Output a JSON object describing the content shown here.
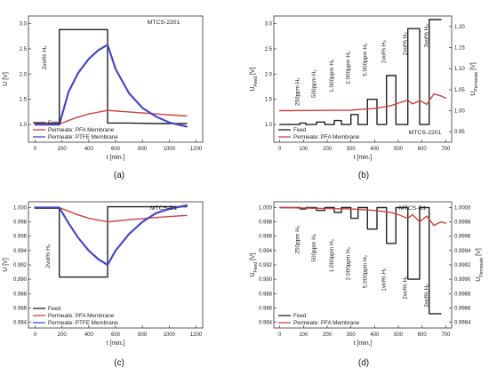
{
  "chart_data": [
    {
      "type": "line",
      "panel_label": "(a)",
      "annotation": "MTCS-2201",
      "inline_labels": [
        "2vol% H₂"
      ],
      "xlabel": "t [min.]",
      "ylabel": "U [V]",
      "ylabel_right": "",
      "xlim": [
        -50,
        1250
      ],
      "ylim": [
        0.65,
        3.15
      ],
      "xticks": [
        "0",
        "200",
        "400",
        "600",
        "800",
        "1000",
        "1200"
      ],
      "yticks": [
        "1.0",
        "1.5",
        "2.0",
        "2.5",
        "3.0"
      ],
      "legend_position": "bottom-left",
      "series": [
        {
          "name": "Feed",
          "color": "#222222",
          "x": [
            0,
            180,
            180,
            540,
            540,
            700,
            900,
            1130
          ],
          "y": [
            1.03,
            1.03,
            2.88,
            2.88,
            1.03,
            1.03,
            1.02,
            1.02
          ]
        },
        {
          "name": "Permeate: PFA Membrane",
          "color": "#d04040",
          "x": [
            0,
            180,
            300,
            400,
            540,
            700,
            900,
            1130
          ],
          "y": [
            1.03,
            1.01,
            1.13,
            1.21,
            1.28,
            1.25,
            1.21,
            1.17
          ]
        },
        {
          "name": "Permeate: PTFE Membrane",
          "color": "#4848c8",
          "x": [
            0,
            180,
            250,
            320,
            400,
            470,
            540,
            600,
            700,
            800,
            900,
            1000,
            1130
          ],
          "y": [
            1.0,
            1.0,
            1.65,
            2.02,
            2.3,
            2.47,
            2.58,
            2.1,
            1.62,
            1.33,
            1.16,
            1.04,
            0.96
          ]
        }
      ]
    },
    {
      "type": "line",
      "panel_label": "(b)",
      "annotation": "MTCS-2201",
      "inline_labels": [
        "250ppm H₂",
        "500ppm H₂",
        "1.000ppm H₂",
        "2.000ppm H₂",
        "5.000ppm H₂",
        "1vol% H₂",
        "2vol% H₂",
        "3vol% H₂"
      ],
      "xlabel": "t [min.]",
      "ylabel": "U_Feed [V]",
      "ylabel_right": "U_Permeate [V]",
      "xlim": [
        -25,
        725
      ],
      "ylim": [
        0.65,
        3.15
      ],
      "ylim_right": [
        0.925,
        1.225
      ],
      "xticks": [
        "0",
        "100",
        "200",
        "300",
        "400",
        "500",
        "600",
        "700"
      ],
      "yticks": [
        "1.0",
        "1.5",
        "2.0",
        "2.5",
        "3.0"
      ],
      "yticks_right": [
        "0.95",
        "1.00",
        "1.05",
        "1.10",
        "1.15",
        "1.20"
      ],
      "legend_position": "bottom-left",
      "series": [
        {
          "name": "Feed",
          "color": "#222222",
          "axis": "left",
          "x": [
            0,
            85,
            85,
            110,
            110,
            155,
            155,
            190,
            190,
            230,
            230,
            260,
            260,
            300,
            300,
            330,
            330,
            370,
            370,
            410,
            410,
            450,
            450,
            490,
            490,
            540,
            540,
            590,
            590,
            630,
            630,
            680
          ],
          "y": [
            1.0,
            1.0,
            1.03,
            1.03,
            1.0,
            1.0,
            1.05,
            1.05,
            1.0,
            1.0,
            1.08,
            1.08,
            1.0,
            1.0,
            1.2,
            1.2,
            1.0,
            1.0,
            1.5,
            1.5,
            1.0,
            1.0,
            1.97,
            1.97,
            1.0,
            1.0,
            2.9,
            2.9,
            1.0,
            1.0,
            3.08,
            3.08
          ]
        },
        {
          "name": "Permeate: PFA Membrane",
          "color": "#d04040",
          "axis": "right",
          "x": [
            0,
            300,
            340,
            400,
            440,
            470,
            500,
            540,
            560,
            590,
            620,
            650,
            680,
            700
          ],
          "y": [
            1.0,
            1.001,
            1.003,
            1.005,
            1.009,
            1.012,
            1.018,
            1.025,
            1.016,
            1.024,
            1.015,
            1.04,
            1.035,
            1.03
          ]
        }
      ]
    },
    {
      "type": "line",
      "panel_label": "(c)",
      "annotation": "MTCS-D1",
      "inline_labels": [
        "2vol% H₂"
      ],
      "xlabel": "t [min.]",
      "ylabel": "U [V]",
      "ylabel_right": "",
      "xlim": [
        -50,
        1250
      ],
      "ylim": [
        0.9832,
        1.0008
      ],
      "xticks": [
        "0",
        "200",
        "400",
        "600",
        "800",
        "1000",
        "1200"
      ],
      "yticks": [
        "0.984",
        "0.986",
        "0.988",
        "0.990",
        "0.992",
        "0.994",
        "0.996",
        "0.998",
        "1.000"
      ],
      "legend_position": "bottom-left",
      "series": [
        {
          "name": "Feed",
          "color": "#222222",
          "x": [
            0,
            180,
            180,
            540,
            540,
            700,
            900,
            1130
          ],
          "y": [
            0.9999,
            0.9999,
            0.9903,
            0.9903,
            1.0001,
            1.0001,
            1.0001,
            1.0001
          ]
        },
        {
          "name": "Permeate: PFA Membrane",
          "color": "#d04040",
          "x": [
            0,
            180,
            300,
            400,
            540,
            700,
            900,
            1130
          ],
          "y": [
            1.0,
            1.0,
            0.9991,
            0.9985,
            0.998,
            0.9983,
            0.9986,
            0.9989
          ]
        },
        {
          "name": "Permeate: PTFE Membrane",
          "color": "#4848c8",
          "x": [
            0,
            180,
            250,
            320,
            400,
            470,
            540,
            600,
            700,
            800,
            900,
            1000,
            1130
          ],
          "y": [
            1.0,
            1.0,
            0.9978,
            0.9958,
            0.994,
            0.9928,
            0.992,
            0.994,
            0.9963,
            0.998,
            0.9992,
            0.9998,
            1.0003
          ]
        }
      ]
    },
    {
      "type": "line",
      "panel_label": "(d)",
      "annotation": "MTCS-D1",
      "inline_labels": [
        "250ppm H₂",
        "500ppm H₂",
        "1.000ppm H₂",
        "2.000ppm H₂",
        "5.000ppm H₂",
        "1vol% H₂",
        "2vol% H₂",
        "3vol% H₂"
      ],
      "xlabel": "t [min.]",
      "ylabel": "U_Feed [V]",
      "ylabel_right": "U_Permeate [V]",
      "xlim": [
        -25,
        725
      ],
      "ylim": [
        0.9832,
        1.0008
      ],
      "ylim_right": [
        0.99832,
        1.00008
      ],
      "xticks": [
        "0",
        "100",
        "200",
        "300",
        "400",
        "500",
        "600",
        "700"
      ],
      "yticks": [
        "0.984",
        "0.986",
        "0.988",
        "0.990",
        "0.992",
        "0.994",
        "0.996",
        "0.998",
        "1.000"
      ],
      "yticks_right": [
        "0.9984",
        "0.9986",
        "0.9988",
        "0.9990",
        "0.9992",
        "0.9994",
        "0.9996",
        "0.9998",
        "1.0000"
      ],
      "legend_position": "bottom-left",
      "series": [
        {
          "name": "Feed",
          "color": "#222222",
          "axis": "left",
          "x": [
            0,
            85,
            85,
            110,
            110,
            155,
            155,
            190,
            190,
            230,
            230,
            260,
            260,
            300,
            300,
            330,
            330,
            370,
            370,
            410,
            410,
            450,
            450,
            490,
            490,
            540,
            540,
            590,
            590,
            630,
            630,
            680
          ],
          "y": [
            1.0,
            1.0,
            0.9998,
            0.9998,
            1.0,
            1.0,
            0.9996,
            0.9996,
            1.0,
            1.0,
            0.9993,
            0.9993,
            1.0,
            1.0,
            0.9985,
            0.9985,
            1.0,
            1.0,
            0.997,
            0.997,
            1.0,
            1.0,
            0.995,
            0.995,
            1.0,
            1.0,
            0.99,
            0.99,
            1.0,
            1.0,
            0.9852,
            0.9852
          ]
        },
        {
          "name": "Permeate: PFA Membrane",
          "color": "#d04040",
          "axis": "right",
          "x": [
            0,
            300,
            400,
            470,
            500,
            540,
            560,
            590,
            620,
            650,
            680,
            700
          ],
          "y": [
            1.0,
            0.99998,
            0.99996,
            0.99993,
            0.9999,
            0.99985,
            0.9999,
            0.9998,
            0.99988,
            0.99975,
            0.9998,
            0.99978
          ]
        }
      ]
    }
  ]
}
